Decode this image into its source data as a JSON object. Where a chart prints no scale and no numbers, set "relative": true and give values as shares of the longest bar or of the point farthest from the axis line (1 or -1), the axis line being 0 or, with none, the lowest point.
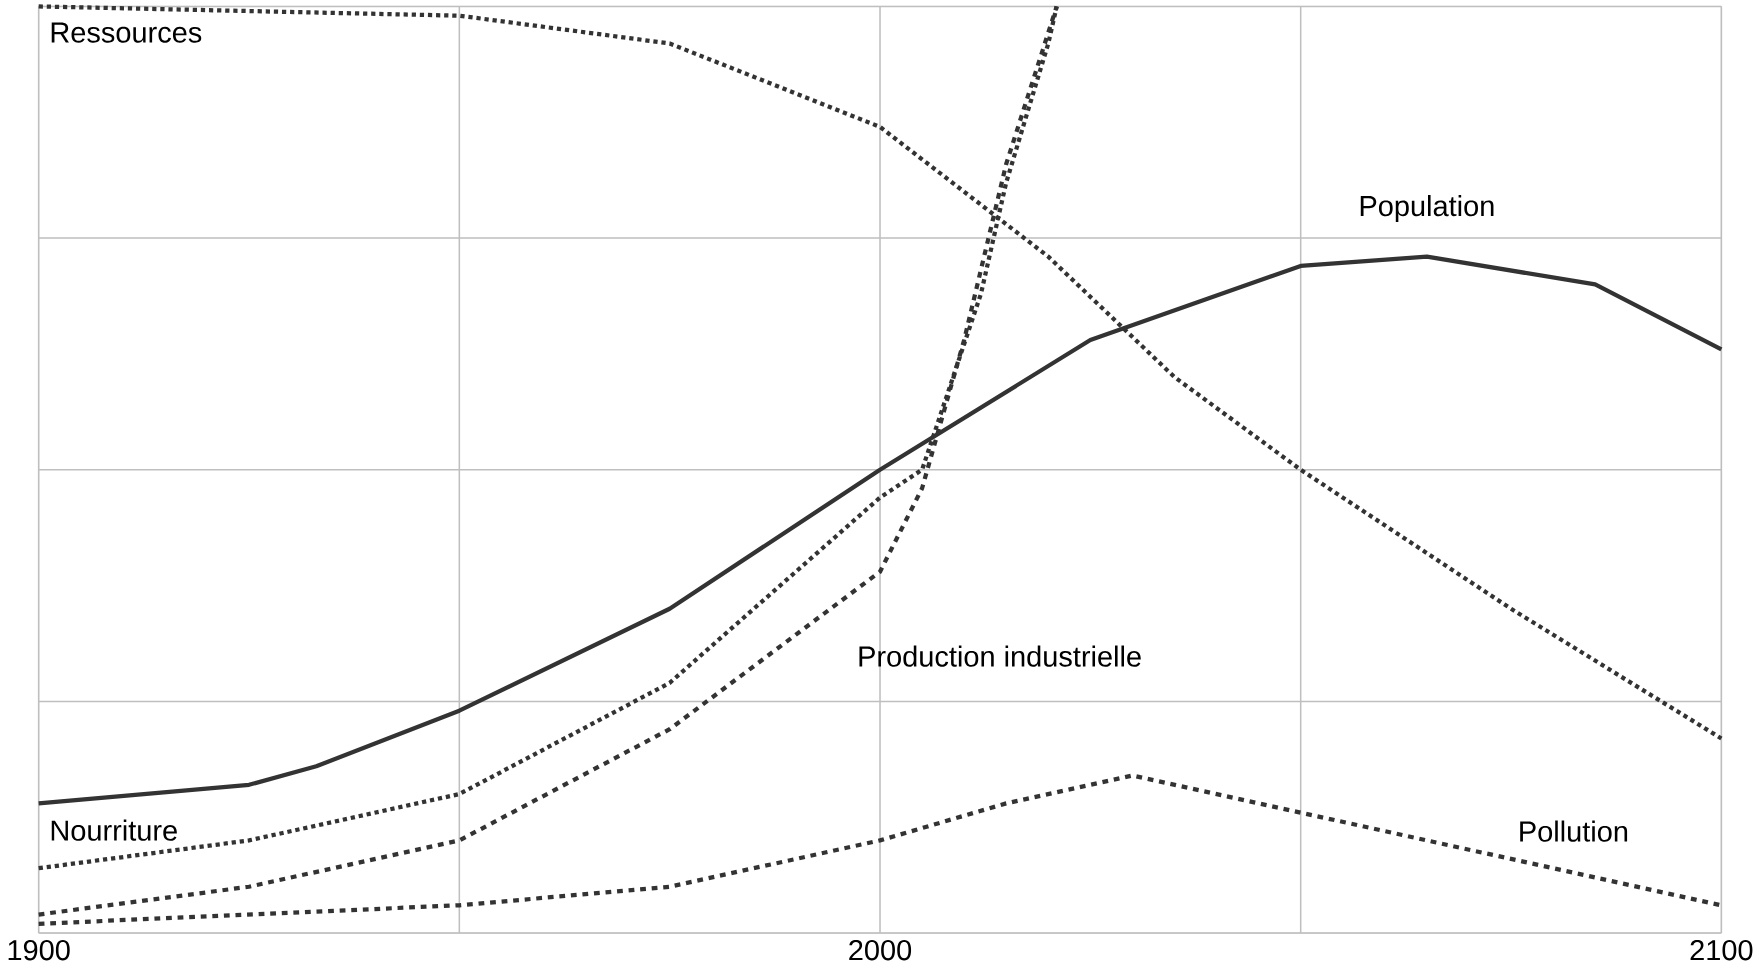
{
  "chart_data": {
    "type": "line",
    "relative": true,
    "xlim": [
      1900,
      2100
    ],
    "xticks": [
      1900,
      {
        "value": 1950,
        "label": null
      },
      2000,
      {
        "value": 2050,
        "label": null
      },
      2100
    ],
    "grid": true,
    "series": [
      {
        "name": "Ressources",
        "color": "#333333",
        "line_style": "dotted",
        "x": [
          1900,
          1950,
          1975,
          2000,
          2020,
          2035,
          2050,
          2075,
          2100
        ],
        "values": [
          1.0,
          0.99,
          0.96,
          0.87,
          0.73,
          0.6,
          0.5,
          0.35,
          0.21
        ]
      },
      {
        "name": "Population",
        "color": "#333333",
        "line_style": "solid",
        "x": [
          1900,
          1925,
          1933,
          1950,
          1975,
          2000,
          2025,
          2050,
          2065,
          2085,
          2100
        ],
        "values": [
          0.14,
          0.16,
          0.18,
          0.24,
          0.35,
          0.5,
          0.64,
          0.72,
          0.73,
          0.7,
          0.63
        ]
      },
      {
        "name": "Nourriture",
        "color": "#333333",
        "line_style": "dotted",
        "x": [
          1900,
          1925,
          1950,
          1975,
          2000,
          2005,
          2012,
          2015,
          2020,
          2021
        ],
        "values": [
          0.07,
          0.1,
          0.15,
          0.27,
          0.47,
          0.5,
          0.69,
          0.81,
          0.96,
          1.0
        ]
      },
      {
        "name": "Production industrielle",
        "color": "#333333",
        "line_style": "dashed",
        "x": [
          1900,
          1925,
          1950,
          1975,
          2000,
          2005,
          2010,
          2015,
          2021
        ],
        "values": [
          0.02,
          0.05,
          0.1,
          0.22,
          0.39,
          0.48,
          0.64,
          0.83,
          1.0
        ]
      },
      {
        "name": "Pollution",
        "color": "#333333",
        "line_style": "dashed",
        "x": [
          1900,
          1950,
          1975,
          2000,
          2015,
          2030,
          2050,
          2075,
          2100
        ],
        "values": [
          0.01,
          0.03,
          0.05,
          0.1,
          0.14,
          0.17,
          0.13,
          0.08,
          0.03
        ]
      }
    ]
  }
}
